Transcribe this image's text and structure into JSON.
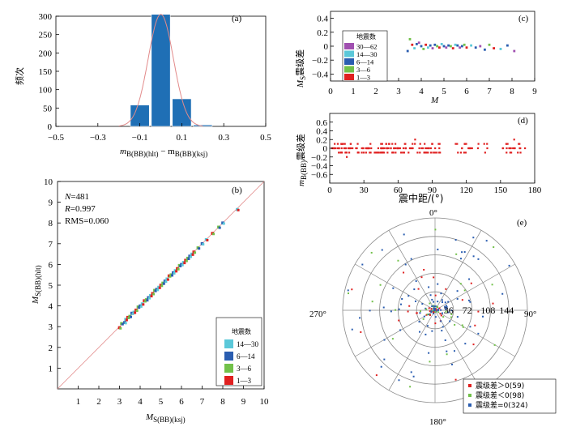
{
  "chart_data": [
    {
      "panel": "(a)",
      "type": "bar",
      "ylabel": "频次",
      "xlabel_main": "m",
      "xlabel_sub1": "B(BB)(hlt)",
      "xlabel_mid": " − m",
      "xlabel_sub2": "B(BB)(ksj)",
      "xlim": [
        -0.5,
        0.5
      ],
      "ylim": [
        0,
        300
      ],
      "xticks": [
        "−0.5",
        "−0.3",
        "−0.1",
        "0.1",
        "0.3",
        "0.5"
      ],
      "yticks": [
        "0",
        "50",
        "100",
        "150",
        "200",
        "250",
        "300"
      ],
      "bar_centers": [
        -0.1,
        0.0,
        0.1,
        0.2
      ],
      "values": [
        58,
        305,
        75,
        4
      ],
      "bar_width": 0.09,
      "fit_curve": "normal",
      "fit_sigma": 0.06,
      "fit_peak": 305
    },
    {
      "panel": "(b)",
      "type": "scatter",
      "xlabel_main": "M",
      "xlabel_sub": "S(BB)(ksj)",
      "ylabel_main": "M",
      "ylabel_sub": "S(BB)(hlt)",
      "xlim": [
        0,
        10
      ],
      "ylim": [
        0,
        10
      ],
      "xticks": [
        "1",
        "2",
        "3",
        "4",
        "5",
        "6",
        "7",
        "8",
        "9",
        "10"
      ],
      "yticks": [
        "1",
        "2",
        "3",
        "4",
        "5",
        "6",
        "7",
        "8",
        "9",
        "10"
      ],
      "stats_n_label": "N",
      "stats_n": "=481",
      "stats_r_label": "R",
      "stats_r": "=0.997",
      "stats_rms": "RMS=0.060",
      "legend_title": "地震数",
      "legend": [
        {
          "label": "14—30",
          "color": "#5bc8d9"
        },
        {
          "label": "6—14",
          "color": "#2a5db0"
        },
        {
          "label": "3—6",
          "color": "#72c14a"
        },
        {
          "label": "1—3",
          "color": "#e02020"
        }
      ],
      "points": [
        [
          3.0,
          2.95
        ],
        [
          3.1,
          3.15
        ],
        [
          3.25,
          3.2
        ],
        [
          3.3,
          3.35
        ],
        [
          3.4,
          3.45
        ],
        [
          3.5,
          3.5
        ],
        [
          3.6,
          3.65
        ],
        [
          3.7,
          3.7
        ],
        [
          3.8,
          3.8
        ],
        [
          3.9,
          3.95
        ],
        [
          4.0,
          4.0
        ],
        [
          4.1,
          4.1
        ],
        [
          4.2,
          4.25
        ],
        [
          4.3,
          4.3
        ],
        [
          4.4,
          4.4
        ],
        [
          4.5,
          4.5
        ],
        [
          4.6,
          4.6
        ],
        [
          4.7,
          4.75
        ],
        [
          4.8,
          4.8
        ],
        [
          4.9,
          4.9
        ],
        [
          5.0,
          5.0
        ],
        [
          5.1,
          5.1
        ],
        [
          5.2,
          5.2
        ],
        [
          5.3,
          5.3
        ],
        [
          5.4,
          5.45
        ],
        [
          5.5,
          5.5
        ],
        [
          5.6,
          5.6
        ],
        [
          5.7,
          5.7
        ],
        [
          5.8,
          5.8
        ],
        [
          5.9,
          5.95
        ],
        [
          6.0,
          6.0
        ],
        [
          6.1,
          6.1
        ],
        [
          6.2,
          6.2
        ],
        [
          6.3,
          6.3
        ],
        [
          6.4,
          6.4
        ],
        [
          6.5,
          6.5
        ],
        [
          6.6,
          6.6
        ],
        [
          6.8,
          6.8
        ],
        [
          7.0,
          7.0
        ],
        [
          7.2,
          7.2
        ],
        [
          7.5,
          7.5
        ],
        [
          7.8,
          7.8
        ],
        [
          8.0,
          8.0
        ],
        [
          8.7,
          8.65
        ]
      ]
    },
    {
      "panel": "(c)",
      "type": "scatter",
      "xlabel": "M",
      "ylabel_main": "M",
      "ylabel_sub": "S",
      "ylabel_rest": "震级差",
      "xlim": [
        0,
        9
      ],
      "ylim": [
        -0.5,
        0.5
      ],
      "xticks": [
        "0",
        "1",
        "2",
        "3",
        "4",
        "5",
        "6",
        "7",
        "8",
        "9"
      ],
      "yticks": [
        "−0.4",
        "−0.2",
        "0",
        "0.2",
        "0.4"
      ],
      "legend_title": "地震数",
      "legend": [
        {
          "label": "30—62",
          "color": "#a050b0"
        },
        {
          "label": "14—30",
          "color": "#5bc8d9"
        },
        {
          "label": "6—14",
          "color": "#2a5db0"
        },
        {
          "label": "3—6",
          "color": "#72c14a"
        },
        {
          "label": "1—3",
          "color": "#e02020"
        }
      ],
      "points": [
        [
          3.4,
          -0.07
        ],
        [
          3.5,
          0.1
        ],
        [
          3.6,
          0.02
        ],
        [
          3.7,
          -0.03
        ],
        [
          3.8,
          0.03
        ],
        [
          3.9,
          0.05
        ],
        [
          4.0,
          0.0
        ],
        [
          4.1,
          -0.04
        ],
        [
          4.2,
          0.02
        ],
        [
          4.3,
          -0.02
        ],
        [
          4.4,
          0.01
        ],
        [
          4.5,
          -0.03
        ],
        [
          4.6,
          0.02
        ],
        [
          4.7,
          0.0
        ],
        [
          4.8,
          -0.02
        ],
        [
          4.9,
          0.03
        ],
        [
          5.0,
          0.0
        ],
        [
          5.1,
          -0.02
        ],
        [
          5.2,
          0.01
        ],
        [
          5.3,
          0.0
        ],
        [
          5.4,
          -0.03
        ],
        [
          5.5,
          0.02
        ],
        [
          5.6,
          0.01
        ],
        [
          5.7,
          -0.02
        ],
        [
          5.8,
          0.0
        ],
        [
          5.9,
          0.02
        ],
        [
          6.0,
          -0.02
        ],
        [
          6.2,
          0.01
        ],
        [
          6.4,
          -0.02
        ],
        [
          6.6,
          0.0
        ],
        [
          6.8,
          -0.05
        ],
        [
          7.0,
          0.02
        ],
        [
          7.2,
          -0.03
        ],
        [
          7.5,
          -0.04
        ],
        [
          7.8,
          0.01
        ],
        [
          8.1,
          -0.07
        ]
      ]
    },
    {
      "panel": "(d)",
      "type": "scatter",
      "xlabel": "震中距/(°)",
      "ylabel_main": "m",
      "ylabel_sub": "B(BB)",
      "ylabel_rest": "震级差",
      "xlim": [
        0,
        180
      ],
      "ylim": [
        -0.8,
        0.8
      ],
      "xticks": [
        "0",
        "30",
        "60",
        "90",
        "120",
        "150",
        "180"
      ],
      "yticks": [
        "0.6",
        "0.4",
        "0.2",
        "0",
        "−0.2",
        "−0.4",
        "−0.6"
      ],
      "color": "#e02020",
      "distance_ranges": [
        [
          2,
          100
        ],
        [
          108,
          140
        ],
        [
          150,
          172
        ]
      ],
      "levels": [
        0.1,
        0.0,
        -0.1
      ]
    },
    {
      "panel": "(e)",
      "type": "polar-scatter",
      "angle_labels": [
        "0°",
        "90°",
        "180°",
        "270°"
      ],
      "radial_ticks": [
        "36",
        "72",
        "108",
        "144"
      ],
      "r_max": 180,
      "legend": [
        {
          "label": "震级差＞0(59)",
          "color": "#e02020"
        },
        {
          "label": "震级差＜0(98)",
          "color": "#72c14a"
        },
        {
          "label": "震级差=0(324)",
          "color": "#2a5db0"
        }
      ]
    }
  ]
}
